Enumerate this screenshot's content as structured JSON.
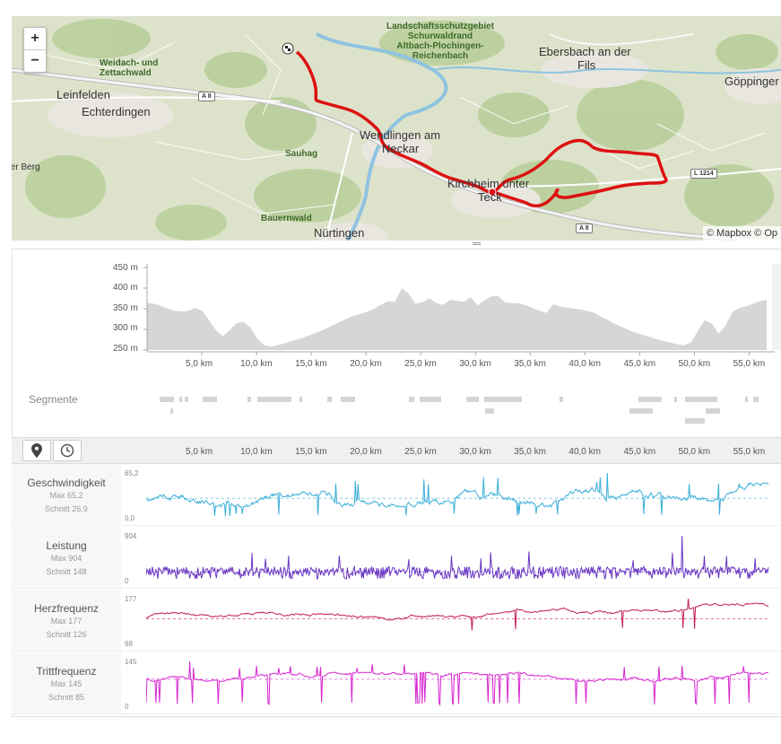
{
  "map": {
    "zoom_in": "+",
    "zoom_out": "−",
    "attribution": "© Mapbox © Op",
    "places": [
      {
        "id": "leinfelden",
        "text": "Leinfelden"
      },
      {
        "id": "echterdingen",
        "text": "Echterdingen"
      },
      {
        "id": "weidach",
        "text": "Weidach- und"
      },
      {
        "id": "zettachwald",
        "text": "Zettachwald"
      },
      {
        "id": "berg",
        "text": "ter Berg"
      },
      {
        "id": "sauhag",
        "text": "Sauhag"
      },
      {
        "id": "bauernwald",
        "text": "Bauernwald"
      },
      {
        "id": "nuertingen",
        "text": "Nürtingen"
      },
      {
        "id": "wendlingen1",
        "text": "Wendlingen am"
      },
      {
        "id": "wendlingen2",
        "text": "Neckar"
      },
      {
        "id": "kirchheim1",
        "text": "Kirchheim unter"
      },
      {
        "id": "kirchheim2",
        "text": "Teck"
      },
      {
        "id": "ebersbach1",
        "text": "Ebersbach an der"
      },
      {
        "id": "ebersbach2",
        "text": "Fils"
      },
      {
        "id": "goeppingen",
        "text": "Göppinger"
      },
      {
        "id": "lsg1",
        "text": "Landschaftsschutzgebiet"
      },
      {
        "id": "lsg2",
        "text": "Schurwaldrand"
      },
      {
        "id": "lsg3",
        "text": "Altbach-Plochingen-"
      },
      {
        "id": "lsg4",
        "text": "Reichenbach"
      }
    ],
    "road_labels": [
      "A 8",
      "A 8",
      "L 1214"
    ]
  },
  "elevation": {
    "y_ticks": [
      "450 m",
      "400 m",
      "350 m",
      "300 m",
      "250 m"
    ],
    "x_ticks": [
      "5,0 km",
      "10,0 km",
      "15,0 km",
      "20,0 km",
      "25,0 km",
      "30,0 km",
      "35,0 km",
      "40,0 km",
      "45,0 km",
      "50,0 km",
      "55,0 km"
    ],
    "profile_m": [
      365,
      362,
      357,
      350,
      345,
      343,
      345,
      352,
      345,
      322,
      298,
      283,
      298,
      315,
      318,
      305,
      278,
      262,
      258,
      262,
      266,
      272,
      276,
      282,
      288,
      295,
      302,
      310,
      318,
      326,
      333,
      338,
      343,
      350,
      360,
      368,
      367,
      400,
      386,
      362,
      366,
      375,
      364,
      359,
      372,
      369,
      367,
      378,
      358,
      370,
      380,
      381,
      365,
      364,
      363,
      358,
      352,
      345,
      340,
      361,
      355,
      353,
      350,
      348,
      344,
      340,
      330,
      322,
      313,
      306,
      298,
      292,
      286,
      282,
      276,
      272,
      268,
      264,
      262,
      268,
      296,
      322,
      314,
      290,
      308,
      342,
      352,
      356,
      362,
      368,
      372
    ],
    "y_range_m": [
      250,
      450
    ],
    "x_max_km": 57
  },
  "segments": {
    "label": "Segmente"
  },
  "analysis": {
    "distance_button": "distance-mode",
    "time_button": "time-mode",
    "x_ticks": [
      "5,0 km",
      "10,0 km",
      "15,0 km",
      "20,0 km",
      "25,0 km",
      "30,0 km",
      "35,0 km",
      "40,0 km",
      "45,0 km",
      "50,0 km",
      "55,0 km"
    ],
    "streams": [
      {
        "name": "Geschwindigkeit",
        "max_label": "Max 65,2",
        "avg_label": "Schnitt 26,9",
        "axis_max": "65,2",
        "axis_min": "0,0",
        "max": 65.2,
        "min": 0,
        "avg": 26.9,
        "color": "#39aed8",
        "seed": 11,
        "style": "speed"
      },
      {
        "name": "Leistung",
        "max_label": "Max 904",
        "avg_label": "Schnitt 148",
        "axis_max": "904",
        "axis_min": "0",
        "max": 904,
        "min": 0,
        "avg": 148,
        "color": "#6a35c2",
        "seed": 23,
        "style": "power"
      },
      {
        "name": "Herzfrequenz",
        "max_label": "Max 177",
        "avg_label": "Schnitt 126",
        "axis_max": "177",
        "axis_min": "68",
        "max": 177,
        "min": 68,
        "avg": 126,
        "color": "#c21e56",
        "seed": 37,
        "style": "hr"
      },
      {
        "name": "Trittfrequenz",
        "max_label": "Max 145",
        "avg_label": "Schnitt 85",
        "axis_max": "145",
        "axis_min": "0",
        "max": 145,
        "min": 0,
        "avg": 85,
        "color": "#d624d0",
        "seed": 53,
        "style": "cad"
      }
    ]
  }
}
